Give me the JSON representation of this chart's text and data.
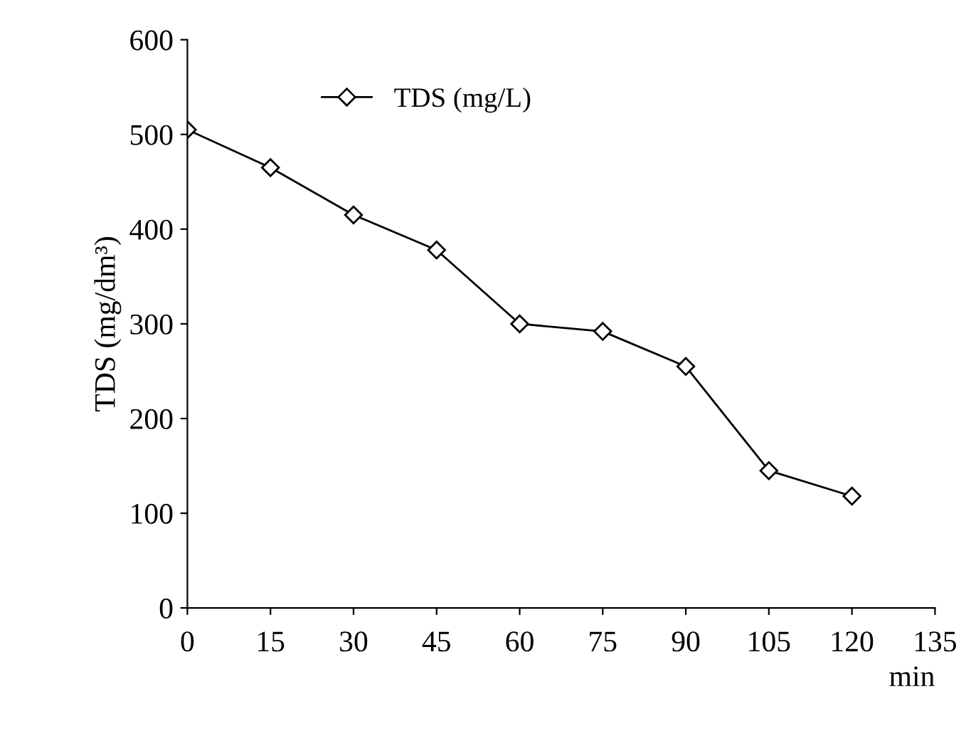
{
  "chart_data": {
    "type": "line",
    "xlabel": "min",
    "ylabel": "TDS (mg/dm³)",
    "x": [
      0,
      15,
      30,
      45,
      60,
      75,
      90,
      105,
      120
    ],
    "series": [
      {
        "name": "TDS (mg/L)",
        "color": "#000000",
        "values": [
          505,
          465,
          415,
          378,
          300,
          292,
          255,
          145,
          118
        ]
      }
    ],
    "xlim": [
      0,
      135
    ],
    "xticks": [
      0,
      15,
      30,
      45,
      60,
      75,
      90,
      105,
      120,
      135
    ],
    "ylim": [
      0,
      600
    ],
    "yticks": [
      0,
      100,
      200,
      300,
      400,
      500,
      600
    ],
    "marker": "diamond",
    "grid": false,
    "legend": "top"
  }
}
